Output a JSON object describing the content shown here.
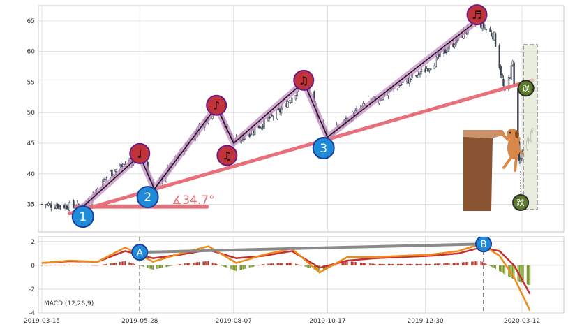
{
  "chart_data": [
    {
      "type": "candlestick",
      "title": "",
      "xlabel": "",
      "ylabel": "",
      "x_tick_labels": [
        "2019-03-15",
        "2019-05-28",
        "2019-08-07",
        "2019-10-17",
        "2019-12-30",
        "2020-03-12"
      ],
      "y_ticks": [
        35,
        40,
        45,
        50,
        55,
        60,
        65
      ],
      "ylim": [
        30.5,
        67.5
      ],
      "grid": true,
      "price_path": [
        {
          "date": "2019-03-15",
          "close": 35.0
        },
        {
          "date": "2019-04-15",
          "close": 34.6
        },
        {
          "date": "2019-05-05",
          "close": 40.0
        },
        {
          "date": "2019-05-28",
          "close": 43.0
        },
        {
          "date": "2019-06-08",
          "close": 37.5
        },
        {
          "date": "2019-07-10",
          "close": 47.0
        },
        {
          "date": "2019-07-25",
          "close": 51.0
        },
        {
          "date": "2019-08-07",
          "close": 45.0
        },
        {
          "date": "2019-09-10",
          "close": 50.0
        },
        {
          "date": "2019-09-29",
          "close": 55.0
        },
        {
          "date": "2019-10-17",
          "close": 46.0
        },
        {
          "date": "2019-11-10",
          "close": 50.5
        },
        {
          "date": "2019-12-30",
          "close": 57.0
        },
        {
          "date": "2020-02-07",
          "close": 65.0
        },
        {
          "date": "2020-02-20",
          "close": 62.5
        },
        {
          "date": "2020-02-28",
          "close": 53.0
        },
        {
          "date": "2020-03-05",
          "close": 58.0
        },
        {
          "date": "2020-03-10",
          "close": 42.0
        },
        {
          "date": "2020-03-20",
          "close": 47.0
        }
      ],
      "angle_label": "∡34.7°",
      "wave_markers": [
        {
          "label": "1",
          "date": "2019-04-15",
          "value": 33.0,
          "color": "#1f8ad6"
        },
        {
          "label": "2",
          "date": "2019-06-03",
          "value": 36.2,
          "color": "#1f8ad6"
        },
        {
          "label": "3",
          "date": "2019-10-14",
          "value": 44.2,
          "color": "#1f8ad6"
        }
      ],
      "note_markers": [
        {
          "glyph": "♩",
          "date": "2019-05-28",
          "value": 43.3
        },
        {
          "glyph": "♪",
          "date": "2019-07-25",
          "value": 51.2
        },
        {
          "glyph": "♫",
          "date": "2019-08-02",
          "value": 43.0
        },
        {
          "glyph": "♫",
          "date": "2019-09-29",
          "value": 55.3
        },
        {
          "glyph": "♬",
          "date": "2020-02-07",
          "value": 66.0
        }
      ],
      "green_markers": [
        {
          "glyph": "误",
          "date": "2020-03-15",
          "value": 54.0
        },
        {
          "glyph": "跌",
          "date": "2020-03-11",
          "value": 35.3
        }
      ]
    },
    {
      "type": "macd",
      "legend_label": "MACD (12,26,9)",
      "y_ticks": [
        -4,
        -2,
        0,
        2
      ],
      "ylim": [
        -4.0,
        2.4
      ],
      "macd_line": [
        {
          "date": "2019-03-15",
          "value": 0.2
        },
        {
          "date": "2019-04-05",
          "value": 0.4
        },
        {
          "date": "2019-04-26",
          "value": 0.3
        },
        {
          "date": "2019-05-17",
          "value": 1.5
        },
        {
          "date": "2019-06-07",
          "value": 0.3
        },
        {
          "date": "2019-06-28",
          "value": 1.0
        },
        {
          "date": "2019-07-19",
          "value": 1.6
        },
        {
          "date": "2019-08-09",
          "value": 0.2
        },
        {
          "date": "2019-08-30",
          "value": 0.9
        },
        {
          "date": "2019-09-20",
          "value": 1.4
        },
        {
          "date": "2019-10-11",
          "value": -0.6
        },
        {
          "date": "2019-11-01",
          "value": 0.7
        },
        {
          "date": "2019-11-22",
          "value": 0.7
        },
        {
          "date": "2019-12-13",
          "value": 0.8
        },
        {
          "date": "2020-01-03",
          "value": 0.9
        },
        {
          "date": "2020-01-24",
          "value": 1.2
        },
        {
          "date": "2020-02-10",
          "value": 1.8
        },
        {
          "date": "2020-02-24",
          "value": 0.8
        },
        {
          "date": "2020-03-06",
          "value": -1.0
        },
        {
          "date": "2020-03-18",
          "value": -3.8
        }
      ],
      "signal_line": [
        {
          "date": "2019-03-15",
          "value": 0.2
        },
        {
          "date": "2019-04-05",
          "value": 0.35
        },
        {
          "date": "2019-04-26",
          "value": 0.3
        },
        {
          "date": "2019-05-17",
          "value": 1.2
        },
        {
          "date": "2019-06-07",
          "value": 0.6
        },
        {
          "date": "2019-06-28",
          "value": 0.9
        },
        {
          "date": "2019-07-19",
          "value": 1.3
        },
        {
          "date": "2019-08-09",
          "value": 0.6
        },
        {
          "date": "2019-08-30",
          "value": 0.8
        },
        {
          "date": "2019-09-20",
          "value": 1.2
        },
        {
          "date": "2019-10-11",
          "value": -0.2
        },
        {
          "date": "2019-11-01",
          "value": 0.4
        },
        {
          "date": "2019-11-22",
          "value": 0.6
        },
        {
          "date": "2019-12-13",
          "value": 0.7
        },
        {
          "date": "2020-01-03",
          "value": 0.8
        },
        {
          "date": "2020-01-24",
          "value": 1.0
        },
        {
          "date": "2020-02-10",
          "value": 1.5
        },
        {
          "date": "2020-02-24",
          "value": 1.2
        },
        {
          "date": "2020-03-06",
          "value": 0.0
        },
        {
          "date": "2020-03-18",
          "value": -2.4
        }
      ],
      "markers": [
        {
          "label": "A",
          "date": "2019-05-28",
          "value": 1.1
        },
        {
          "label": "B",
          "date": "2020-02-12",
          "value": 1.8
        }
      ]
    }
  ]
}
